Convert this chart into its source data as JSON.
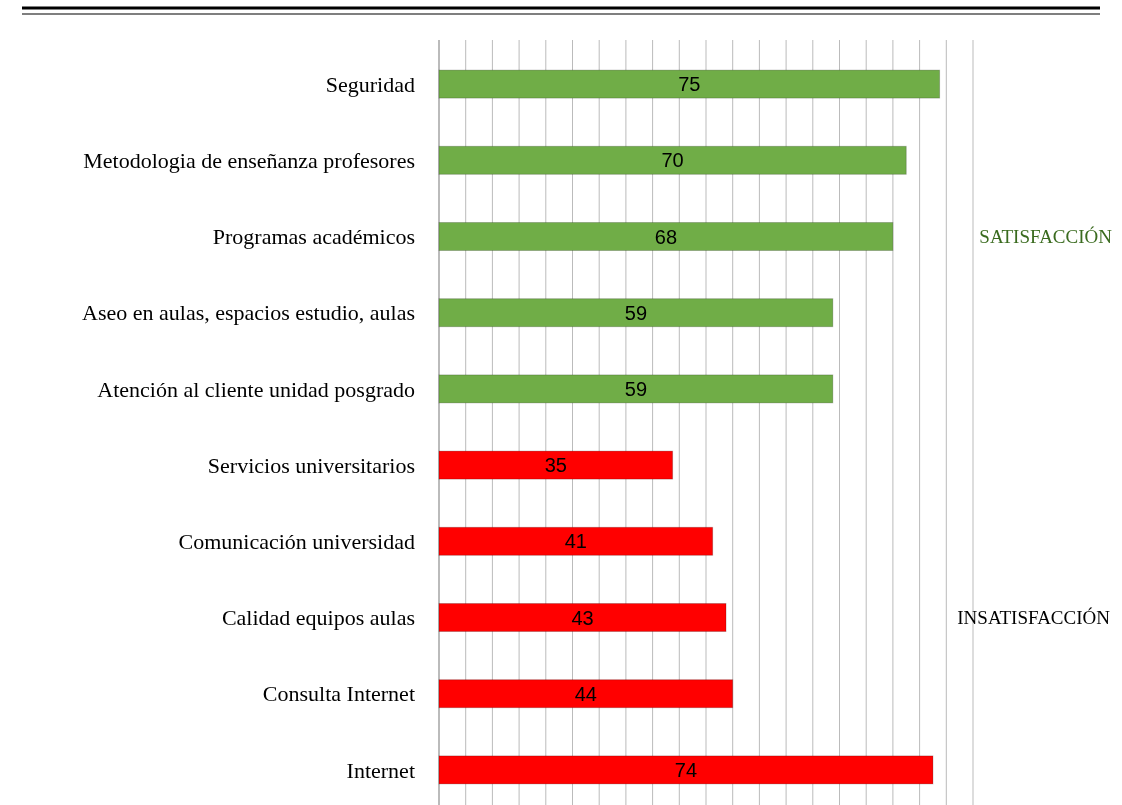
{
  "chart_data": {
    "type": "bar",
    "orientation": "horizontal",
    "categories": [
      "Seguridad",
      "Metodologia de enseñanza profesores",
      "Programas académicos",
      "Aseo en aulas, espacios estudio, aulas",
      "Atención al cliente unidad posgrado",
      "Servicios universitarios",
      "Comunicación universidad",
      "Calidad equipos aulas",
      "Consulta Internet",
      "Internet"
    ],
    "values": [
      75,
      70,
      68,
      59,
      59,
      35,
      41,
      43,
      44,
      74
    ],
    "colors": [
      "#70ad47",
      "#70ad47",
      "#70ad47",
      "#70ad47",
      "#70ad47",
      "#ff0000",
      "#ff0000",
      "#ff0000",
      "#ff0000",
      "#ff0000"
    ],
    "xlim": [
      0,
      80
    ],
    "xticks": [
      {
        "value": 0,
        "label": null
      },
      {
        "value": 4,
        "label": null
      },
      {
        "value": 8,
        "label": null
      },
      {
        "value": 12,
        "label": null
      },
      {
        "value": 16,
        "label": null
      },
      {
        "value": 20,
        "label": null
      },
      {
        "value": 24,
        "label": null
      },
      {
        "value": 28,
        "label": null
      },
      {
        "value": 32,
        "label": null
      },
      {
        "value": 36,
        "label": null
      },
      {
        "value": 40,
        "label": null
      },
      {
        "value": 44,
        "label": null
      },
      {
        "value": 48,
        "label": null
      },
      {
        "value": 52,
        "label": null
      },
      {
        "value": 56,
        "label": null
      },
      {
        "value": 60,
        "label": null
      },
      {
        "value": 64,
        "label": null
      },
      {
        "value": 68,
        "label": null
      },
      {
        "value": 72,
        "label": null
      },
      {
        "value": 76,
        "label": null
      },
      {
        "value": 80,
        "label": null
      }
    ],
    "grid": "x",
    "data_labels": true,
    "annotations": [
      "SATISFACCIÓN",
      "INSATISFACCIÓN"
    ]
  }
}
